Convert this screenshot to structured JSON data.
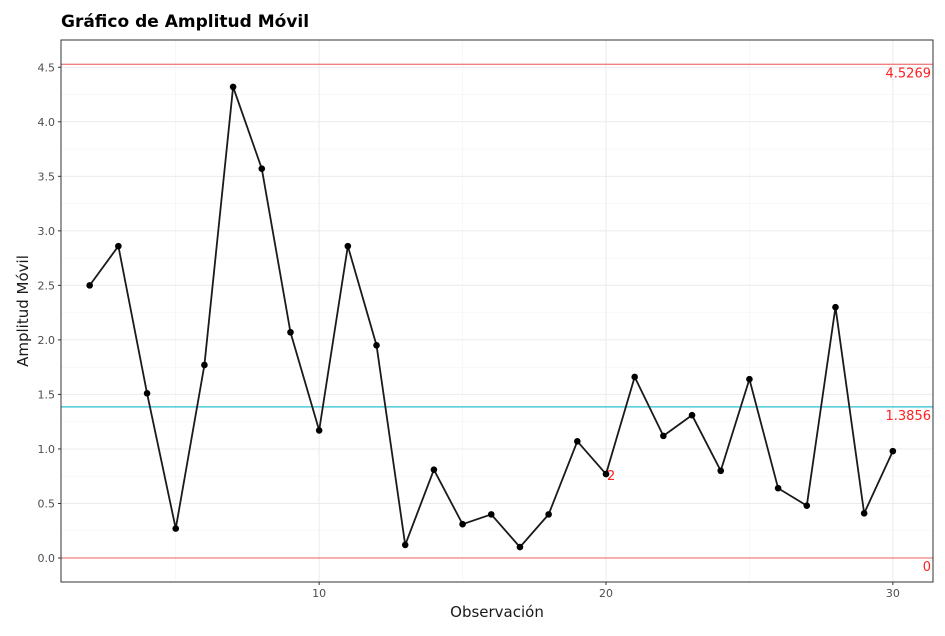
{
  "chart_data": {
    "type": "line",
    "title": "Gráfico de Amplitud Móvil",
    "xlabel": "Observación",
    "ylabel": "Amplitud Móvil",
    "xlim": [
      1.0,
      31.4
    ],
    "ylim": [
      -0.22,
      4.75
    ],
    "x_ticks": [
      10,
      20,
      30
    ],
    "y_ticks": [
      0.0,
      0.5,
      1.0,
      1.5,
      2.0,
      2.5,
      3.0,
      3.5,
      4.0,
      4.5
    ],
    "y_tick_labels": [
      "0.0",
      "0.5",
      "1.0",
      "1.5",
      "2.0",
      "2.5",
      "3.0",
      "3.5",
      "4.0",
      "4.5"
    ],
    "x_tick_labels": [
      "10",
      "20",
      "30"
    ],
    "grid": true,
    "series": [
      {
        "x": [
          2,
          3,
          4,
          5,
          6,
          7,
          8,
          9,
          10,
          11,
          12,
          13,
          14,
          15,
          16,
          17,
          18,
          19,
          20,
          21,
          22,
          23,
          24,
          25,
          26,
          27,
          28,
          29,
          30
        ],
        "values": [
          2.5,
          2.86,
          1.51,
          0.27,
          1.77,
          4.32,
          3.57,
          2.07,
          1.17,
          2.86,
          1.95,
          0.12,
          0.81,
          0.31,
          0.4,
          0.1,
          0.4,
          1.07,
          0.77,
          1.66,
          1.12,
          1.31,
          0.8,
          1.64,
          0.64,
          0.48,
          2.3,
          0.41,
          0.98
        ],
        "color": "#1a1a1a"
      }
    ],
    "reference_lines": [
      {
        "y": 4.5269,
        "label": "4.5269",
        "color": "#f08080"
      },
      {
        "y": 1.3856,
        "label": "1.3856",
        "color": "#26c1d0"
      },
      {
        "y": 0,
        "label": "0",
        "color": "#f08080"
      }
    ],
    "annotations": [
      {
        "x": 20,
        "y": 0.77,
        "text": "2",
        "color": "#ff2020"
      }
    ],
    "label_color": "#ff2020"
  }
}
